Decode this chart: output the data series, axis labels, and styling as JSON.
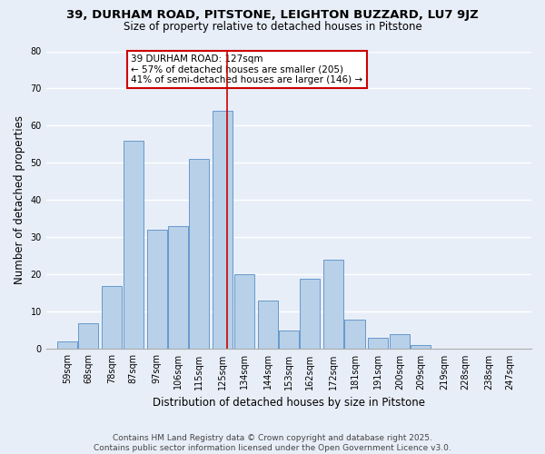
{
  "title": "39, DURHAM ROAD, PITSTONE, LEIGHTON BUZZARD, LU7 9JZ",
  "subtitle": "Size of property relative to detached houses in Pitstone",
  "xlabel": "Distribution of detached houses by size in Pitstone",
  "ylabel": "Number of detached properties",
  "bar_color": "#b8d0e8",
  "bar_edge_color": "#6699cc",
  "bar_heights": [
    2,
    7,
    17,
    56,
    32,
    33,
    51,
    64,
    20,
    13,
    5,
    19,
    24,
    8,
    3,
    4,
    1
  ],
  "bin_centers": [
    59,
    68,
    78,
    87,
    97,
    106,
    115,
    125,
    134,
    144,
    153,
    162,
    172,
    181,
    191,
    200,
    209
  ],
  "bin_width": 8.5,
  "all_tick_positions": [
    59,
    68,
    78,
    87,
    97,
    106,
    115,
    125,
    134,
    144,
    153,
    162,
    172,
    181,
    191,
    200,
    209,
    219,
    228,
    238,
    247
  ],
  "bin_labels": [
    "59sqm",
    "68sqm",
    "78sqm",
    "87sqm",
    "97sqm",
    "106sqm",
    "115sqm",
    "125sqm",
    "134sqm",
    "144sqm",
    "153sqm",
    "162sqm",
    "172sqm",
    "181sqm",
    "191sqm",
    "200sqm",
    "209sqm",
    "219sqm",
    "228sqm",
    "238sqm",
    "247sqm"
  ],
  "ylim": [
    0,
    80
  ],
  "yticks": [
    0,
    10,
    20,
    30,
    40,
    50,
    60,
    70,
    80
  ],
  "xlim": [
    50,
    256
  ],
  "vline_x": 127,
  "vline_color": "#cc0000",
  "annotation_text": "39 DURHAM ROAD: 127sqm\n← 57% of detached houses are smaller (205)\n41% of semi-detached houses are larger (146) →",
  "annotation_box_facecolor": "#ffffff",
  "annotation_box_edgecolor": "#cc0000",
  "footer_text": "Contains HM Land Registry data © Crown copyright and database right 2025.\nContains public sector information licensed under the Open Government Licence v3.0.",
  "background_color": "#e8eef8",
  "grid_color": "#ffffff",
  "title_fontsize": 9.5,
  "subtitle_fontsize": 8.5,
  "axis_label_fontsize": 8.5,
  "tick_fontsize": 7.0,
  "annotation_fontsize": 7.5,
  "footer_fontsize": 6.5
}
